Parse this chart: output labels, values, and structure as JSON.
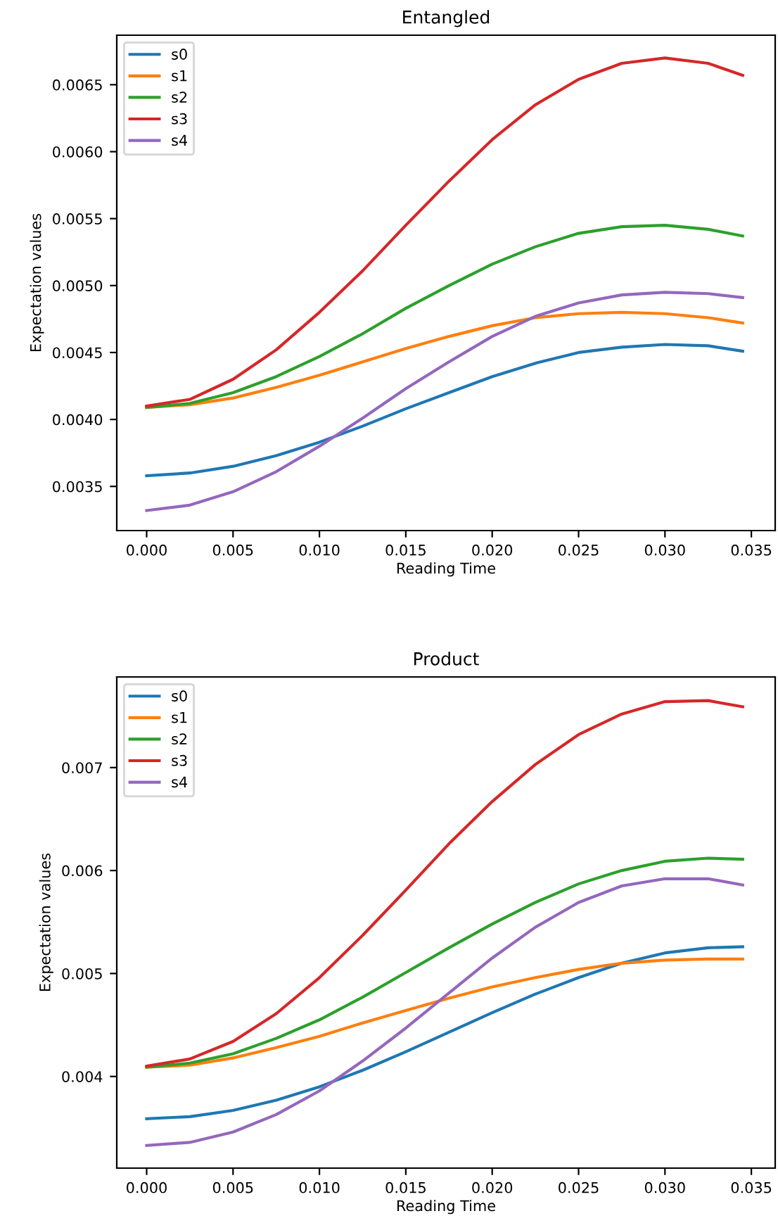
{
  "chart_data": [
    {
      "type": "line",
      "title": "Entangled",
      "xlabel": "Reading Time",
      "ylabel": "Expectation values",
      "x": [
        0,
        0.0025,
        0.005,
        0.0075,
        0.01,
        0.0125,
        0.015,
        0.0175,
        0.02,
        0.0225,
        0.025,
        0.0275,
        0.03,
        0.0325,
        0.0345
      ],
      "xlim": [
        -0.00173,
        0.03638
      ],
      "xticks": [
        {
          "value": 0,
          "label": "0.000"
        },
        {
          "value": 0.005,
          "label": "0.005"
        },
        {
          "value": 0.01,
          "label": "0.010"
        },
        {
          "value": 0.015,
          "label": "0.015"
        },
        {
          "value": 0.02,
          "label": "0.020"
        },
        {
          "value": 0.025,
          "label": "0.025"
        },
        {
          "value": 0.03,
          "label": "0.030"
        },
        {
          "value": 0.035,
          "label": "0.035"
        }
      ],
      "ylim": [
        0.00317,
        0.00687
      ],
      "yticks": [
        {
          "value": 0.0035,
          "label": "0.0035"
        },
        {
          "value": 0.004,
          "label": "0.0040"
        },
        {
          "value": 0.0045,
          "label": "0.0045"
        },
        {
          "value": 0.005,
          "label": "0.0050"
        },
        {
          "value": 0.0055,
          "label": "0.0055"
        },
        {
          "value": 0.006,
          "label": "0.0060"
        },
        {
          "value": 0.0065,
          "label": "0.0065"
        }
      ],
      "legend": "top left",
      "grid": false,
      "marker": "none",
      "line_style": "solid",
      "series": [
        {
          "name": "s0",
          "color": "#1f77b4",
          "values": [
            0.00358,
            0.0036,
            0.00365,
            0.00373,
            0.00383,
            0.00395,
            0.00408,
            0.0042,
            0.00432,
            0.00442,
            0.0045,
            0.00454,
            0.00456,
            0.00455,
            0.00451
          ]
        },
        {
          "name": "s1",
          "color": "#ff7f0e",
          "values": [
            0.00409,
            0.00411,
            0.00416,
            0.00424,
            0.00433,
            0.00443,
            0.00453,
            0.00462,
            0.0047,
            0.00476,
            0.00479,
            0.0048,
            0.00479,
            0.00476,
            0.00472
          ]
        },
        {
          "name": "s2",
          "color": "#2ca02c",
          "values": [
            0.00409,
            0.00412,
            0.0042,
            0.00432,
            0.00447,
            0.00464,
            0.00483,
            0.005,
            0.00516,
            0.00529,
            0.00539,
            0.00544,
            0.00545,
            0.00542,
            0.00537
          ]
        },
        {
          "name": "s3",
          "color": "#d62728",
          "values": [
            0.0041,
            0.00415,
            0.0043,
            0.00452,
            0.0048,
            0.00511,
            0.00545,
            0.00578,
            0.00609,
            0.00635,
            0.00654,
            0.00666,
            0.0067,
            0.00666,
            0.00657
          ]
        },
        {
          "name": "s4",
          "color": "#9467bd",
          "values": [
            0.00332,
            0.00336,
            0.00346,
            0.00361,
            0.0038,
            0.00401,
            0.00423,
            0.00443,
            0.00462,
            0.00477,
            0.00487,
            0.00493,
            0.00495,
            0.00494,
            0.00491
          ]
        }
      ]
    },
    {
      "type": "line",
      "title": "Product",
      "xlabel": "Reading Time",
      "ylabel": "Expectation values",
      "x": [
        0,
        0.0025,
        0.005,
        0.0075,
        0.01,
        0.0125,
        0.015,
        0.0175,
        0.02,
        0.0225,
        0.025,
        0.0275,
        0.03,
        0.0325,
        0.0345
      ],
      "xlim": [
        -0.00173,
        0.03638
      ],
      "xticks": [
        {
          "value": 0,
          "label": "0.000"
        },
        {
          "value": 0.005,
          "label": "0.005"
        },
        {
          "value": 0.01,
          "label": "0.010"
        },
        {
          "value": 0.015,
          "label": "0.015"
        },
        {
          "value": 0.02,
          "label": "0.020"
        },
        {
          "value": 0.025,
          "label": "0.025"
        },
        {
          "value": 0.03,
          "label": "0.030"
        },
        {
          "value": 0.035,
          "label": "0.035"
        }
      ],
      "ylim": [
        0.00311,
        0.00788
      ],
      "yticks": [
        0.004,
        0.005,
        0.006,
        0.007
      ],
      "legend": "top left",
      "grid": false,
      "marker": "none",
      "line_style": "solid",
      "series": [
        {
          "name": "s0",
          "color": "#1f77b4",
          "values": [
            0.00359,
            0.00361,
            0.00367,
            0.00377,
            0.0039,
            0.00406,
            0.00424,
            0.00443,
            0.00462,
            0.0048,
            0.00496,
            0.0051,
            0.0052,
            0.00525,
            0.00526
          ]
        },
        {
          "name": "s1",
          "color": "#ff7f0e",
          "values": [
            0.00409,
            0.00411,
            0.00418,
            0.00428,
            0.00439,
            0.00452,
            0.00464,
            0.00476,
            0.00487,
            0.00496,
            0.00504,
            0.0051,
            0.00513,
            0.00514,
            0.00514
          ]
        },
        {
          "name": "s2",
          "color": "#2ca02c",
          "values": [
            0.00409,
            0.00413,
            0.00422,
            0.00437,
            0.00455,
            0.00477,
            0.00501,
            0.00525,
            0.00548,
            0.00569,
            0.00587,
            0.006,
            0.00609,
            0.00612,
            0.00611
          ]
        },
        {
          "name": "s3",
          "color": "#d62728",
          "values": [
            0.0041,
            0.00417,
            0.00434,
            0.00461,
            0.00496,
            0.00537,
            0.00581,
            0.00626,
            0.00667,
            0.00703,
            0.00732,
            0.00752,
            0.00764,
            0.00765,
            0.00759
          ]
        },
        {
          "name": "s4",
          "color": "#9467bd",
          "values": [
            0.00333,
            0.00336,
            0.00346,
            0.00363,
            0.00386,
            0.00415,
            0.00447,
            0.00481,
            0.00515,
            0.00545,
            0.00569,
            0.00585,
            0.00592,
            0.00592,
            0.00586
          ]
        }
      ]
    }
  ]
}
